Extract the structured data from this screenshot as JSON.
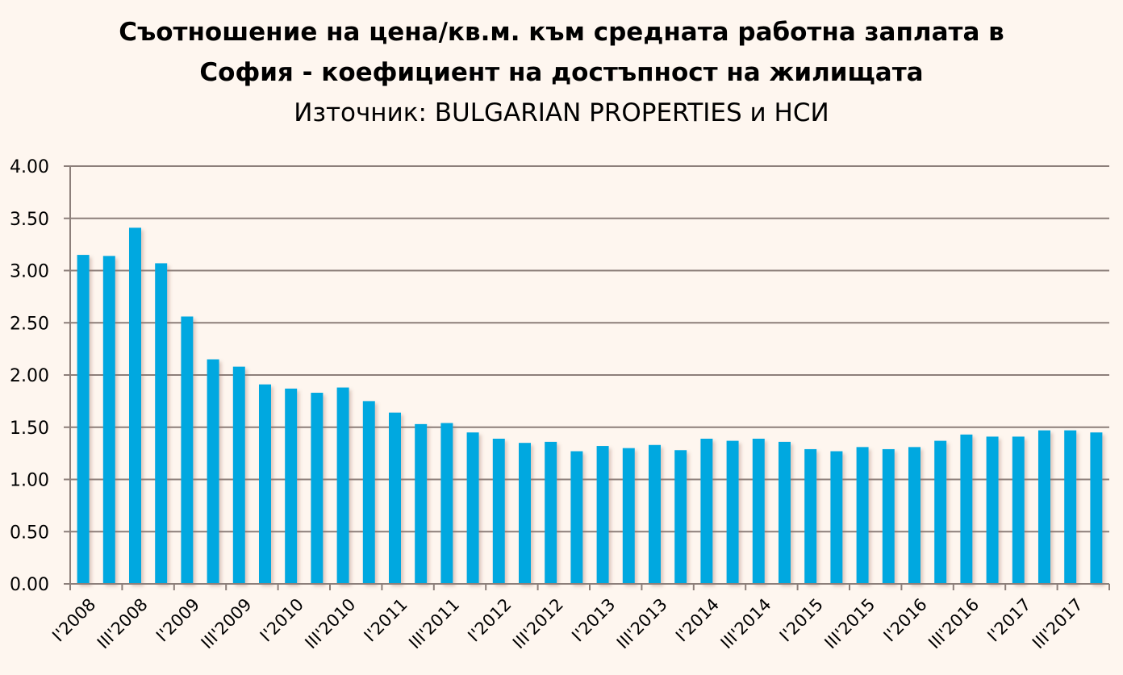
{
  "chart_data": {
    "type": "bar",
    "title": "Съотношение на цена/кв.м. към средната работна заплата в",
    "title_line2": "София - коефициент на достъпност на жилищата",
    "subtitle": "Източник: BULGARIAN PROPERTIES и НСИ",
    "xlabel": "",
    "ylabel": "",
    "ylim": [
      0,
      4
    ],
    "yticks": [
      "0.00",
      "0.50",
      "1.00",
      "1.50",
      "2.00",
      "2.50",
      "3.00",
      "3.50",
      "4.00"
    ],
    "grid": true,
    "legend": "none",
    "bar_color": "#00A8E0",
    "background": "#FEF6EF",
    "tick_labels": [
      "I'2008",
      "III'2008",
      "I'2009",
      "III'2009",
      "I'2010",
      "III'2010",
      "I'2011",
      "III'2011",
      "I'2012",
      "III'2012",
      "I'2013",
      "III'2013",
      "I'2014",
      "III'2014",
      "I'2015",
      "III'2015",
      "I'2016",
      "III'2016",
      "I'2017",
      "III'2017"
    ],
    "values": [
      3.15,
      3.14,
      3.41,
      3.07,
      2.56,
      2.15,
      2.08,
      1.91,
      1.87,
      1.83,
      1.88,
      1.75,
      1.64,
      1.53,
      1.54,
      1.45,
      1.39,
      1.35,
      1.36,
      1.27,
      1.32,
      1.3,
      1.33,
      1.28,
      1.39,
      1.37,
      1.39,
      1.36,
      1.29,
      1.27,
      1.31,
      1.29,
      1.31,
      1.37,
      1.43,
      1.41,
      1.41,
      1.47,
      1.47,
      1.45
    ]
  }
}
